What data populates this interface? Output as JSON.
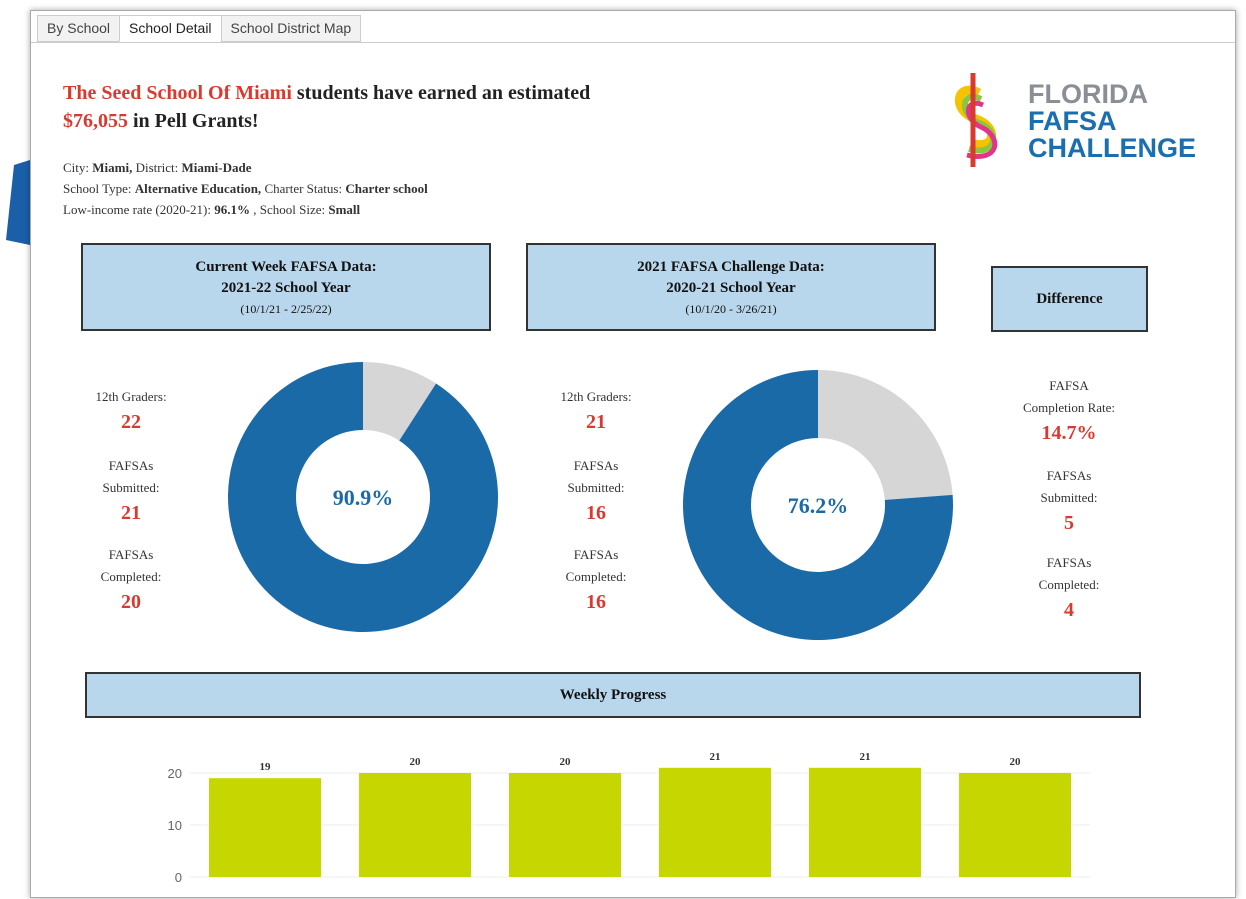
{
  "tabs": [
    "By School",
    "School Detail",
    "School District Map"
  ],
  "headline": {
    "school": "The Seed School Of Miami",
    "text": "students have earned an estimated",
    "amount": "$76,055",
    "text2": "in Pell Grants!"
  },
  "logo": [
    "FLORIDA",
    "FAFSA",
    "CHALLENGE"
  ],
  "info": [
    [
      {
        "label": "City:",
        "value": "Miami,"
      },
      {
        "label": "District:",
        "value": "Miami-Dade"
      }
    ],
    [
      {
        "label": "School Type:",
        "value": "Alternative Education,"
      },
      {
        "label": "Charter Status:",
        "value": "Charter school"
      }
    ],
    [
      {
        "label": "Low-income rate (2020-21):",
        "value": "96.1%"
      },
      {
        "label": ", School Size:",
        "value": "Small"
      }
    ]
  ],
  "panels": [
    {
      "title": [
        "Current Week FAFSA Data:",
        "2021-22 School Year"
      ],
      "dates": "(10/1/21 - 2/25/22)",
      "stats": [
        {
          "label": [
            "12th Graders:"
          ],
          "value": 22
        },
        {
          "label": [
            "FAFSAs",
            "Submitted:"
          ],
          "value": 21
        },
        {
          "label": [
            "FAFSAs",
            "Completed:"
          ],
          "value": 20
        }
      ]
    },
    {
      "title": [
        "2021 FAFSA Challenge Data:",
        "2020-21 School Year"
      ],
      "dates": "(10/1/20 - 3/26/21)",
      "stats": [
        {
          "label": [
            "12th Graders:"
          ],
          "value": 21
        },
        {
          "label": [
            "FAFSAs",
            "Submitted:"
          ],
          "value": 16
        },
        {
          "label": [
            "FAFSAs",
            "Completed:"
          ],
          "value": 16
        }
      ]
    }
  ],
  "difference": {
    "title": "Difference",
    "stats": [
      {
        "label": [
          "FAFSA",
          "Completion Rate:"
        ],
        "value": "14.7%"
      },
      {
        "label": [
          "FAFSAs",
          "Submitted:"
        ],
        "value": 5
      },
      {
        "label": [
          "FAFSAs",
          "Completed:"
        ],
        "value": 4
      }
    ]
  },
  "chart_data": [
    {
      "type": "donut",
      "values": [
        90.9
      ],
      "value_labels": [
        "90.9%"
      ],
      "ylim": [
        0,
        100
      ],
      "color": "#1a6aa8",
      "rest_color": "#d6d6d6"
    },
    {
      "type": "donut",
      "values": [
        76.2
      ],
      "value_labels": [
        "76.2%"
      ],
      "ylim": [
        0,
        100
      ],
      "color": "#1a6aa8",
      "rest_color": "#d6d6d6"
    },
    {
      "type": "bar",
      "title": "Weekly Progress",
      "categories": [
        null,
        null,
        null,
        null,
        null,
        null
      ],
      "values": [
        19,
        20,
        20,
        21,
        21,
        20
      ],
      "ylim": [
        0,
        25
      ],
      "yticks": [
        0,
        10,
        20
      ],
      "grid": true,
      "color": "#c5d600"
    }
  ]
}
